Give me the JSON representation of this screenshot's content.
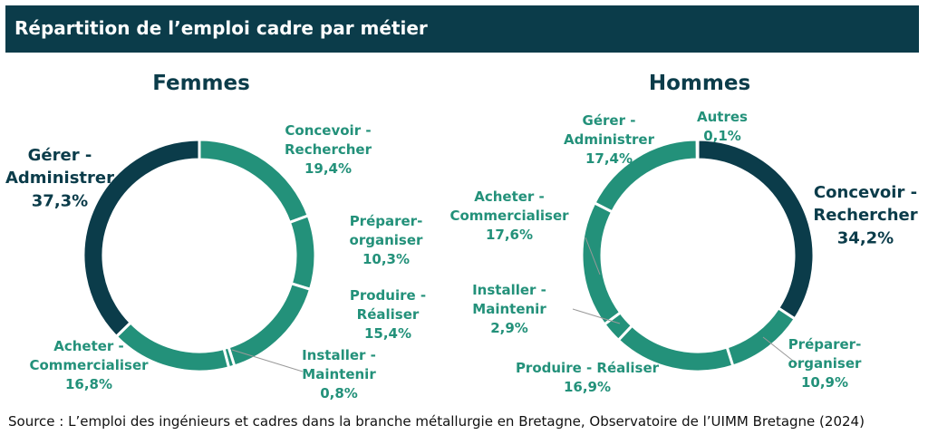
{
  "header": {
    "title": "Répartition de l’emploi cadre par métier"
  },
  "colors": {
    "dark": "#0b3c4a",
    "teal": "#23917a",
    "bg": "#ffffff"
  },
  "chart_data": [
    {
      "type": "pie",
      "variant": "donut",
      "title": "Femmes",
      "unit": "%",
      "slices": [
        {
          "label": "Concevoir - Rechercher",
          "lines": [
            "Concevoir -",
            "Rechercher",
            "19,4%"
          ],
          "value": 19.4,
          "color": "#23917a"
        },
        {
          "label": "Préparer-organiser",
          "lines": [
            "Préparer-",
            "organiser",
            "10,3%"
          ],
          "value": 10.3,
          "color": "#23917a"
        },
        {
          "label": "Produire - Réaliser",
          "lines": [
            "Produire -",
            "Réaliser",
            "15,4%"
          ],
          "value": 15.4,
          "color": "#23917a"
        },
        {
          "label": "Installer - Maintenir",
          "lines": [
            "Installer -",
            "Maintenir",
            "0,8%"
          ],
          "value": 0.8,
          "color": "#23917a"
        },
        {
          "label": "Acheter - Commercialiser",
          "lines": [
            "Acheter -",
            "Commercialiser",
            "16,8%"
          ],
          "value": 16.8,
          "color": "#23917a"
        },
        {
          "label": "Gérer - Administrer",
          "lines": [
            "Gérer -",
            "Administrer",
            "37,3%"
          ],
          "value": 37.3,
          "color": "#0b3c4a"
        }
      ]
    },
    {
      "type": "pie",
      "variant": "donut",
      "title": "Hommes",
      "unit": "%",
      "slices": [
        {
          "label": "Concevoir - Rechercher",
          "lines": [
            "Concevoir -",
            "Rechercher",
            "34,2%"
          ],
          "value": 34.2,
          "color": "#0b3c4a"
        },
        {
          "label": "Préparer-organiser",
          "lines": [
            "Préparer-",
            "organiser",
            "10,9%"
          ],
          "value": 10.9,
          "color": "#23917a"
        },
        {
          "label": "Produire - Réaliser",
          "lines": [
            "Produire - Réaliser",
            "16,9%"
          ],
          "value": 16.9,
          "color": "#23917a"
        },
        {
          "label": "Installer - Maintenir",
          "lines": [
            "Installer -",
            "Maintenir",
            "2,9%"
          ],
          "value": 2.9,
          "color": "#23917a"
        },
        {
          "label": "Acheter - Commercialiser",
          "lines": [
            "Acheter -",
            "Commercialiser",
            "17,6%"
          ],
          "value": 17.6,
          "color": "#23917a"
        },
        {
          "label": "Gérer - Administrer",
          "lines": [
            "Gérer -",
            "Administrer",
            "17,4%"
          ],
          "value": 17.4,
          "color": "#23917a"
        },
        {
          "label": "Autres",
          "lines": [
            "Autres",
            "0,1%"
          ],
          "value": 0.1,
          "color": "#23917a"
        }
      ]
    }
  ],
  "source": "Source :  L’emploi des ingénieurs et cadres dans la branche métallurgie en Bretagne, Observatoire de l’UIMM Bretagne (2024)"
}
